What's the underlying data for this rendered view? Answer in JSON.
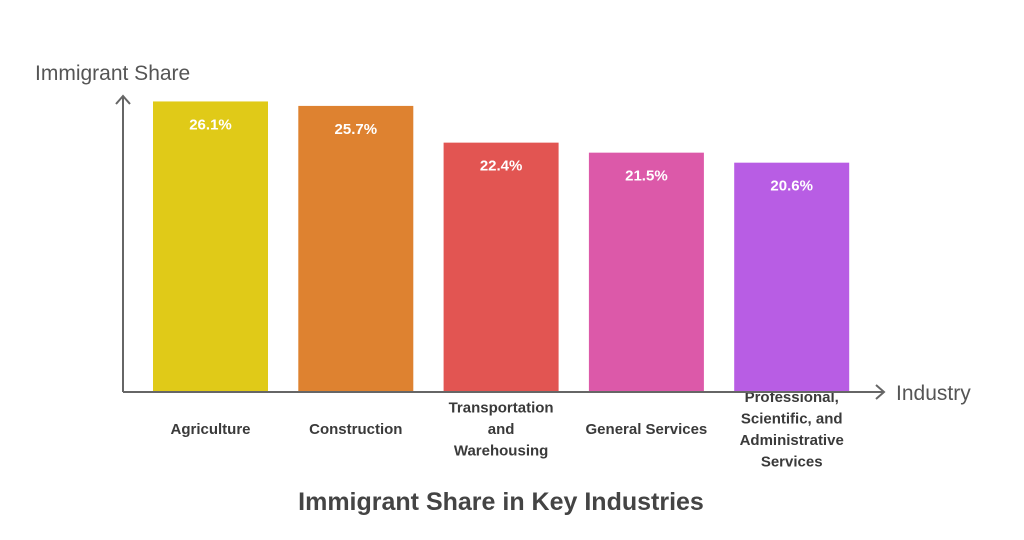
{
  "chart_data": {
    "type": "bar",
    "title": "Immigrant Share in Key Industries",
    "xlabel": "Industry",
    "ylabel": "Immigrant Share",
    "categories": [
      "Agriculture",
      "Construction",
      "Transportation and Warehousing",
      "General Services",
      "Professional, Scientific, and Administrative Services"
    ],
    "category_lines": [
      [
        "Agriculture"
      ],
      [
        "Construction"
      ],
      [
        "Transportation",
        "and",
        "Warehousing"
      ],
      [
        "General Services"
      ],
      [
        "Professional,",
        "Scientific, and",
        "Administrative",
        "Services"
      ]
    ],
    "values": [
      26.1,
      25.7,
      22.4,
      21.5,
      20.6
    ],
    "value_labels": [
      "26.1%",
      "25.7%",
      "22.4%",
      "21.5%",
      "20.6%"
    ],
    "colors": [
      "#E0CA18",
      "#DE8230",
      "#E25552",
      "#DC59A9",
      "#B85DE4"
    ],
    "ylim": [
      0,
      26.5
    ],
    "grid": false,
    "legend": "none"
  }
}
